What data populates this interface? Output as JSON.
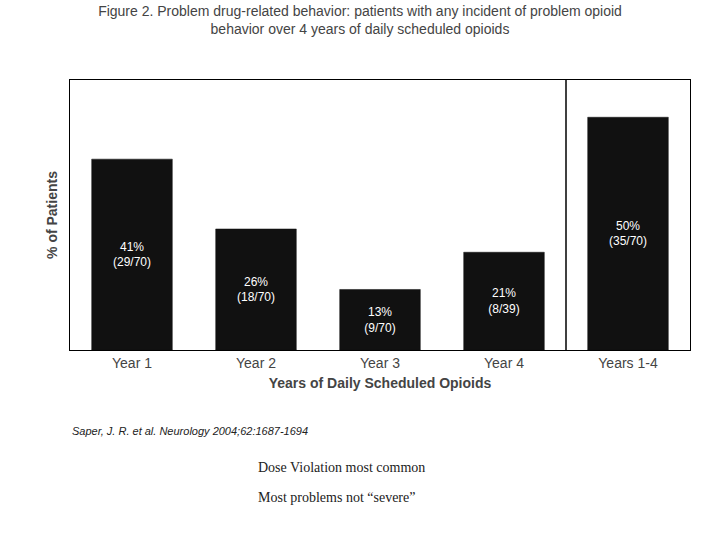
{
  "chart_data": {
    "type": "bar",
    "title": "Figure 2. Problem drug-related behavior: patients with any incident of problem opioid\nbehavior over 4 years of daily scheduled opioids",
    "categories": [
      "Year 1",
      "Year 2",
      "Year 3",
      "Year 4",
      "Years 1-4"
    ],
    "values": [
      41,
      26,
      13,
      21,
      50
    ],
    "value_labels": [
      "41%\n(29/70)",
      "26%\n(18/70)",
      "13%\n(9/70)",
      "21%\n(8/39)",
      "50%\n(35/70)"
    ],
    "data_labels": true,
    "color": "#111111",
    "xlabel": "Years of Daily Scheduled Opioids",
    "ylabel": "% of Patients",
    "ylim": [
      0,
      58
    ],
    "tick_labels": "x",
    "grid": false,
    "annotations": [
      "Saper, J. R. et al. Neurology 2004;62:1687-1694",
      "Dose Violation most common",
      "Most problems not “severe”"
    ]
  }
}
